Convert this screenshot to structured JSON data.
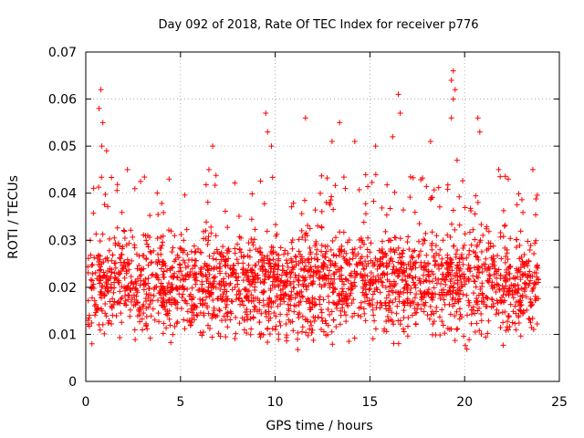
{
  "chart_data": {
    "type": "scatter",
    "title": "Day 092 of 2018, Rate Of TEC Index for receiver p776",
    "xlabel": "GPS time / hours",
    "ylabel": "ROTI / TECUs",
    "xlim": [
      0,
      25
    ],
    "ylim": [
      0,
      0.07
    ],
    "x_ticks": [
      "0",
      "5",
      "10",
      "15",
      "20",
      "25"
    ],
    "y_ticks": [
      "0",
      "0.01",
      "0.02",
      "0.03",
      "0.04",
      "0.05",
      "0.06",
      "0.07"
    ],
    "grid": true,
    "marker": "+",
    "color": "#ff0000",
    "series": [
      {
        "name": "ROTI",
        "x_range": [
          0.1,
          23.9
        ],
        "typical_range": [
          0.005,
          0.035
        ],
        "peaks": [
          [
            0.8,
            0.062
          ],
          [
            0.7,
            0.058
          ],
          [
            0.9,
            0.055
          ],
          [
            0.85,
            0.05
          ],
          [
            1.1,
            0.049
          ],
          [
            2.2,
            0.045
          ],
          [
            4.4,
            0.043
          ],
          [
            6.7,
            0.05
          ],
          [
            6.5,
            0.045
          ],
          [
            9.5,
            0.057
          ],
          [
            9.6,
            0.053
          ],
          [
            9.8,
            0.05
          ],
          [
            11.6,
            0.056
          ],
          [
            13.4,
            0.055
          ],
          [
            13.0,
            0.051
          ],
          [
            14.2,
            0.051
          ],
          [
            15.3,
            0.05
          ],
          [
            16.5,
            0.061
          ],
          [
            16.6,
            0.057
          ],
          [
            16.2,
            0.052
          ],
          [
            18.2,
            0.051
          ],
          [
            19.4,
            0.066
          ],
          [
            19.3,
            0.064
          ],
          [
            19.5,
            0.062
          ],
          [
            19.4,
            0.06
          ],
          [
            19.3,
            0.056
          ],
          [
            19.6,
            0.047
          ],
          [
            20.7,
            0.056
          ],
          [
            20.8,
            0.053
          ],
          [
            21.8,
            0.045
          ],
          [
            22.3,
            0.043
          ],
          [
            23.6,
            0.045
          ]
        ]
      }
    ]
  }
}
